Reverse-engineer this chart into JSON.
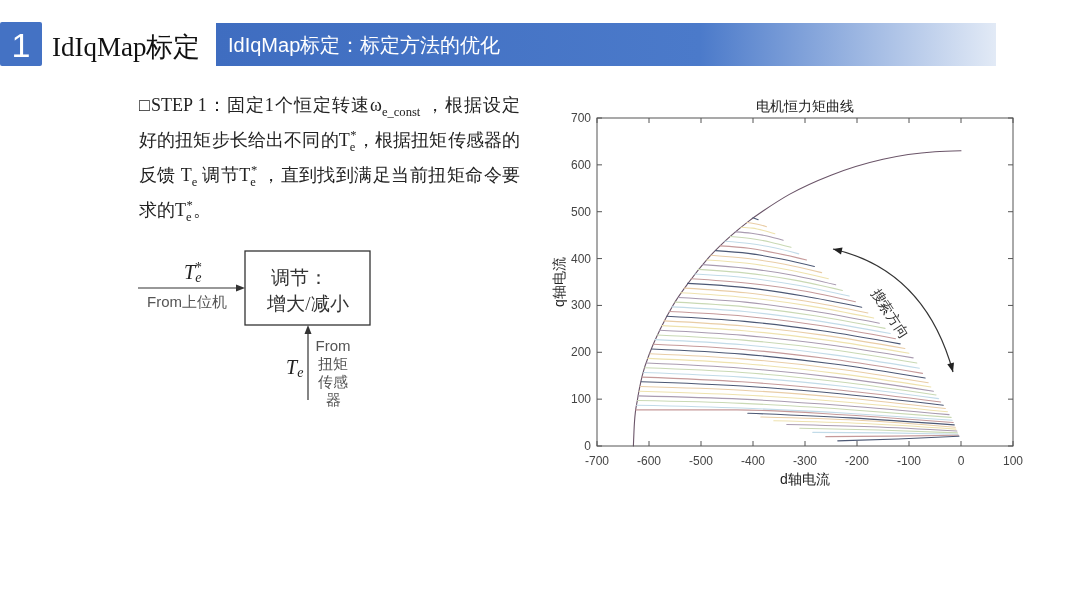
{
  "chart_data": [
    {
      "type": "other",
      "title": "IdIqMap标定",
      "subtitle": "IdIqMap标定：标定方法的优化",
      "annotations": [
        "1",
        "□STEP 1：固定1个恒定转速ω$_{e_const}$ ，根据设定好的扭矩步长给出不同的T$_{e}$$^{*}$，根据扭矩传感器的反馈 T$_{e}$ 调节T$_{e}$$^{*}$ ，直到找到满足当前扭矩命令要求的T$_{e}$$^{*}$。",
        "T$_{e}$$^{*}$",
        "From上位机",
        "调节：",
        "增大/减小",
        "T$_{e}$",
        "From扭矩传感器"
      ]
    },
    {
      "type": "line",
      "title": "电机恒力矩曲线",
      "xlabel": "d轴电流",
      "ylabel": "q轴电流",
      "xlim": [
        -700,
        100
      ],
      "ylim": [
        0,
        700
      ],
      "xticks": [
        -700,
        -600,
        -500,
        -400,
        -300,
        -200,
        -100,
        0,
        100
      ],
      "yticks": [
        0,
        100,
        200,
        300,
        400,
        500,
        600,
        700
      ],
      "annotations": [
        "搜索方向"
      ],
      "series": [
        {
          "color": "#6a5468",
          "x": [
            -630,
            -628,
            -622,
            -613,
            -598,
            -578,
            -554,
            -523,
            -487,
            -441,
            -408,
            -380,
            -330,
            -250,
            -150,
            -50,
            0
          ],
          "values": [
            0,
            50,
            100,
            150,
            200,
            250,
            300,
            350,
            400,
            450,
            480,
            502,
            537,
            578,
            612,
            628,
            630
          ]
        },
        {
          "color": "#4c5874",
          "x": [
            -400,
            -390
          ],
          "values": [
            487,
            483
          ]
        },
        {
          "color": "#e9cda6",
          "x": [
            -412,
            -399,
            -387,
            -374
          ],
          "values": [
            477,
            475,
            472,
            468
          ]
        },
        {
          "color": "#eee2ae",
          "x": [
            -423,
            -401,
            -380,
            -358
          ],
          "values": [
            467,
            465,
            460,
            453
          ]
        },
        {
          "color": "#a99bb0",
          "x": [
            -434,
            -403,
            -373,
            -342
          ],
          "values": [
            457,
            454,
            448,
            439
          ]
        },
        {
          "color": "#c9d9b4",
          "x": [
            -444,
            -405,
            -366,
            -327
          ],
          "values": [
            447,
            443,
            435,
            424
          ]
        },
        {
          "color": "#c2dbe8",
          "x": [
            -454,
            -407,
            -359,
            -312
          ],
          "values": [
            437,
            432,
            423,
            410
          ]
        },
        {
          "color": "#c69a9a",
          "x": [
            -463,
            -408,
            -352,
            -297
          ],
          "values": [
            427,
            422,
            411,
            397
          ]
        },
        {
          "color": "#4c5874",
          "x": [
            -472,
            -409,
            -345,
            -282
          ],
          "values": [
            417,
            411,
            399,
            383
          ]
        },
        {
          "color": "#e9cda6",
          "x": [
            -481,
            -410,
            -339,
            -268
          ],
          "values": [
            407,
            400,
            388,
            370
          ]
        },
        {
          "color": "#eee2ae",
          "x": [
            -489,
            -411,
            -333,
            -255
          ],
          "values": [
            397,
            390,
            376,
            357
          ]
        },
        {
          "color": "#a99bb0",
          "x": [
            -497,
            -412,
            -326,
            -241
          ],
          "values": [
            387,
            379,
            365,
            344
          ]
        },
        {
          "color": "#c9d9b4",
          "x": [
            -505,
            -413,
            -320,
            -228
          ],
          "values": [
            377,
            369,
            354,
            332
          ]
        },
        {
          "color": "#c2dbe8",
          "x": [
            -512,
            -413,
            -314,
            -215
          ],
          "values": [
            367,
            359,
            343,
            320
          ]
        },
        {
          "color": "#c69a9a",
          "x": [
            -519,
            -414,
            -308,
            -203
          ],
          "values": [
            357,
            348,
            332,
            308
          ]
        },
        {
          "color": "#4c5874",
          "x": [
            -526,
            -414,
            -303,
            -191
          ],
          "values": [
            347,
            338,
            320,
            296
          ]
        },
        {
          "color": "#e9cda6",
          "x": [
            -532,
            -414,
            -297,
            -179
          ],
          "values": [
            337,
            327,
            309,
            284
          ]
        },
        {
          "color": "#eee2ae",
          "x": [
            -539,
            -415,
            -292,
            -168
          ],
          "values": [
            327,
            317,
            299,
            273
          ]
        },
        {
          "color": "#a99bb0",
          "x": [
            -544,
            -415,
            -286,
            -157
          ],
          "values": [
            317,
            307,
            288,
            262
          ]
        },
        {
          "color": "#c9d9b4",
          "x": [
            -550,
            -415,
            -281,
            -146
          ],
          "values": [
            307,
            297,
            278,
            251
          ]
        },
        {
          "color": "#c2dbe8",
          "x": [
            -556,
            -416,
            -276,
            -136
          ],
          "values": [
            297,
            287,
            267,
            240
          ]
        },
        {
          "color": "#c69a9a",
          "x": [
            -561,
            -416,
            -271,
            -126
          ],
          "values": [
            287,
            277,
            257,
            229
          ]
        },
        {
          "color": "#4c5874",
          "x": [
            -566,
            -416,
            -267,
            -117
          ],
          "values": [
            277,
            266,
            246,
            218
          ]
        },
        {
          "color": "#e9cda6",
          "x": [
            -571,
            -417,
            -262,
            -108
          ],
          "values": [
            267,
            256,
            236,
            208
          ]
        },
        {
          "color": "#eee2ae",
          "x": [
            -575,
            -417,
            -258,
            -100
          ],
          "values": [
            257,
            246,
            226,
            198
          ]
        },
        {
          "color": "#a99bb0",
          "x": [
            -580,
            -417,
            -255,
            -92
          ],
          "values": [
            247,
            236,
            216,
            188
          ]
        },
        {
          "color": "#c9d9b4",
          "x": [
            -584,
            -418,
            -251,
            -85
          ],
          "values": [
            237,
            226,
            206,
            177
          ]
        },
        {
          "color": "#c2dbe8",
          "x": [
            -588,
            -419,
            -249,
            -80
          ],
          "values": [
            227,
            216,
            195,
            166
          ]
        },
        {
          "color": "#c69a9a",
          "x": [
            -592,
            -419,
            -247,
            -74
          ],
          "values": [
            217,
            206,
            185,
            155
          ]
        },
        {
          "color": "#4c5874",
          "x": [
            -595,
            -420,
            -244,
            -69
          ],
          "values": [
            207,
            196,
            175,
            145
          ]
        },
        {
          "color": "#e9cda6",
          "x": [
            -598,
            -420,
            -241,
            -63
          ],
          "values": [
            197,
            186,
            165,
            135
          ]
        },
        {
          "color": "#eee2ae",
          "x": [
            -602,
            -421,
            -239,
            -58
          ],
          "values": [
            187,
            176,
            155,
            126
          ]
        },
        {
          "color": "#a99bb0",
          "x": [
            -605,
            -421,
            -237,
            -53
          ],
          "values": [
            177,
            166,
            146,
            117
          ]
        },
        {
          "color": "#c9d9b4",
          "x": [
            -608,
            -421,
            -235,
            -48
          ],
          "values": [
            167,
            157,
            137,
            109
          ]
        },
        {
          "color": "#c2dbe8",
          "x": [
            -610,
            -421,
            -232,
            -43
          ],
          "values": [
            157,
            147,
            128,
            101
          ]
        },
        {
          "color": "#c69a9a",
          "x": [
            -613,
            -422,
            -230,
            -39
          ],
          "values": [
            147,
            137,
            119,
            94
          ]
        },
        {
          "color": "#4c5874",
          "x": [
            -615,
            -421,
            -228,
            -34
          ],
          "values": [
            137,
            128,
            111,
            87
          ]
        },
        {
          "color": "#e9cda6",
          "x": [
            -617,
            -421,
            -226,
            -30
          ],
          "values": [
            127,
            119,
            103,
            80
          ]
        },
        {
          "color": "#eee2ae",
          "x": [
            -619,
            -421,
            -224,
            -26
          ],
          "values": [
            117,
            109,
            94,
            73
          ]
        },
        {
          "color": "#a99bb0",
          "x": [
            -621,
            -422,
            -222,
            -23
          ],
          "values": [
            107,
            100,
            86,
            67
          ]
        },
        {
          "color": "#c9d9b4",
          "x": [
            -622,
            -421,
            -220,
            -19
          ],
          "values": [
            97,
            91,
            78,
            61
          ]
        },
        {
          "color": "#c2dbe8",
          "x": [
            -624,
            -422,
            -219,
            -17
          ],
          "values": [
            87,
            81,
            70,
            55
          ]
        },
        {
          "color": "#c69a9a",
          "x": [
            -625,
            -431,
            -220,
            -15
          ],
          "values": [
            77,
            77,
            66,
            50
          ]
        },
        {
          "color": "#4c5874",
          "x": [
            -410,
            -212,
            -13
          ],
          "values": [
            70,
            60,
            45
          ]
        },
        {
          "color": "#e9cda6",
          "x": [
            -385,
            -198,
            -11
          ],
          "values": [
            62,
            55,
            40
          ]
        },
        {
          "color": "#eee2ae",
          "x": [
            -360,
            -185,
            -10
          ],
          "values": [
            54,
            48,
            36
          ]
        },
        {
          "color": "#a99bb0",
          "x": [
            -335,
            -172,
            -8
          ],
          "values": [
            46,
            41,
            32
          ]
        },
        {
          "color": "#c9d9b4",
          "x": [
            -310,
            -159,
            -7
          ],
          "values": [
            38,
            34,
            28
          ]
        },
        {
          "color": "#c2dbe8",
          "x": [
            -285,
            -146,
            -6
          ],
          "values": [
            29,
            28,
            25
          ]
        },
        {
          "color": "#c69a9a",
          "x": [
            -260,
            -133,
            -5
          ],
          "values": [
            20,
            21,
            23
          ]
        },
        {
          "color": "#4c5874",
          "x": [
            -237,
            -121,
            -4
          ],
          "values": [
            11,
            15,
            21
          ]
        }
      ]
    }
  ]
}
